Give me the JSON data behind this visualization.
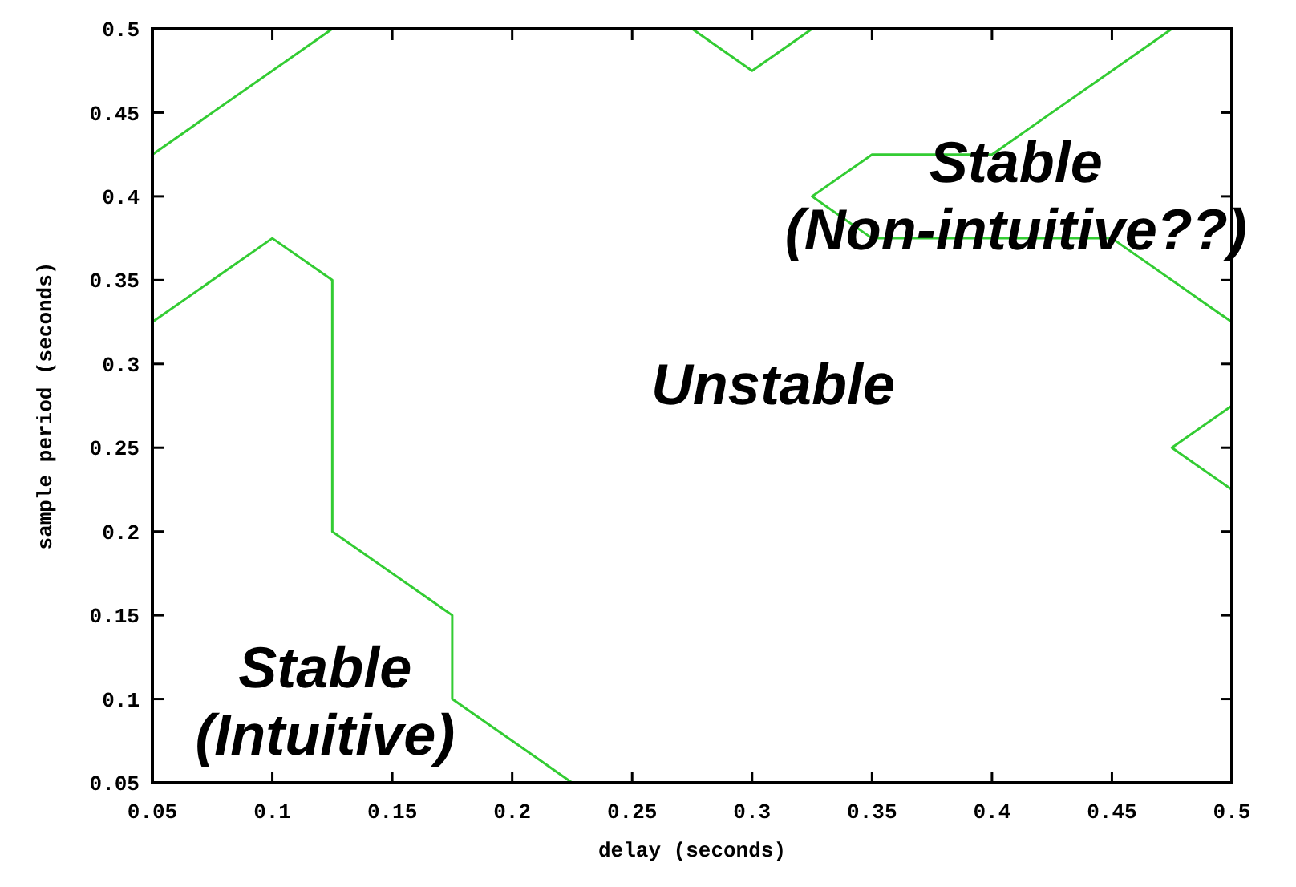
{
  "chart_data": {
    "type": "line",
    "xlabel": "delay (seconds)",
    "ylabel": "sample period (seconds)",
    "xlim": [
      0.05,
      0.5
    ],
    "ylim": [
      0.05,
      0.5
    ],
    "xticks": [
      0.05,
      0.1,
      0.15,
      0.2,
      0.25,
      0.3,
      0.35,
      0.4,
      0.45,
      0.5
    ],
    "yticks": [
      0.05,
      0.1,
      0.15,
      0.2,
      0.25,
      0.3,
      0.35,
      0.4,
      0.45,
      0.5
    ],
    "grid": false,
    "marker": "none",
    "line_style": "solid",
    "series": [
      {
        "color": "#33cc33",
        "x": [
          0.05,
          0.125
        ],
        "values": [
          0.425,
          0.5
        ]
      },
      {
        "color": "#33cc33",
        "x": [
          0.275,
          0.3,
          0.325
        ],
        "values": [
          0.5,
          0.475,
          0.5
        ]
      },
      {
        "color": "#33cc33",
        "x": [
          0.475,
          0.4,
          0.35,
          0.325,
          0.35,
          0.45,
          0.5
        ],
        "values": [
          0.5,
          0.425,
          0.425,
          0.4,
          0.375,
          0.375,
          0.325
        ]
      },
      {
        "color": "#33cc33",
        "x": [
          0.5,
          0.475,
          0.5
        ],
        "values": [
          0.275,
          0.25,
          0.225
        ]
      },
      {
        "color": "#33cc33",
        "x": [
          0.05,
          0.1,
          0.125,
          0.125,
          0.175,
          0.175,
          0.225
        ],
        "values": [
          0.325,
          0.375,
          0.35,
          0.2,
          0.15,
          0.1,
          0.05
        ]
      }
    ],
    "annotations": [
      "Unstable",
      "Stable\n(Non-intuitive??)",
      "Stable\n(Intuitive)"
    ]
  }
}
